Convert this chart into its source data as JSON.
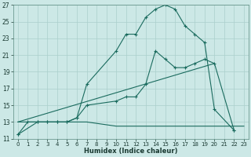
{
  "xlabel": "Humidex (Indice chaleur)",
  "background_color": "#cce8e6",
  "grid_color": "#aacfcc",
  "line_color": "#1a6b5e",
  "xlim": [
    -0.5,
    23.5
  ],
  "ylim": [
    11,
    27
  ],
  "yticks": [
    11,
    13,
    15,
    17,
    19,
    21,
    23,
    25,
    27
  ],
  "xticks": [
    0,
    1,
    2,
    3,
    4,
    5,
    6,
    7,
    8,
    9,
    10,
    11,
    12,
    13,
    14,
    15,
    16,
    17,
    18,
    19,
    20,
    21,
    22,
    23
  ],
  "line1_x": [
    0,
    1,
    2,
    3,
    4,
    5,
    6,
    7,
    10,
    11,
    12,
    13,
    14,
    15,
    16,
    17,
    18,
    19,
    20,
    22
  ],
  "line1_y": [
    11.5,
    13,
    13,
    13,
    13,
    13,
    13.5,
    17.5,
    21.5,
    23.5,
    23.5,
    25.5,
    26.5,
    27,
    26.5,
    24.5,
    23.5,
    22.5,
    14.5,
    12
  ],
  "line2_x": [
    0,
    2,
    3,
    4,
    5,
    6,
    7,
    10,
    11,
    12,
    13,
    14,
    15,
    16,
    17,
    18,
    19,
    20,
    22
  ],
  "line2_y": [
    11.5,
    13,
    13,
    13,
    13,
    13.5,
    15,
    15.5,
    16,
    16,
    17.5,
    21.5,
    20.5,
    19.5,
    19.5,
    20,
    20.5,
    20,
    12
  ],
  "line3_x": [
    0,
    3,
    4,
    5,
    6,
    7,
    10,
    11,
    12,
    13,
    14,
    15,
    16,
    17,
    18,
    19,
    20,
    21,
    22,
    23
  ],
  "line3_y": [
    13,
    13,
    13,
    13,
    13,
    13,
    12.5,
    12.5,
    12.5,
    12.5,
    12.5,
    12.5,
    12.5,
    12.5,
    12.5,
    12.5,
    12.5,
    12.5,
    12.5,
    12.5
  ],
  "line4_x": [
    0,
    20
  ],
  "line4_y": [
    13,
    20
  ]
}
